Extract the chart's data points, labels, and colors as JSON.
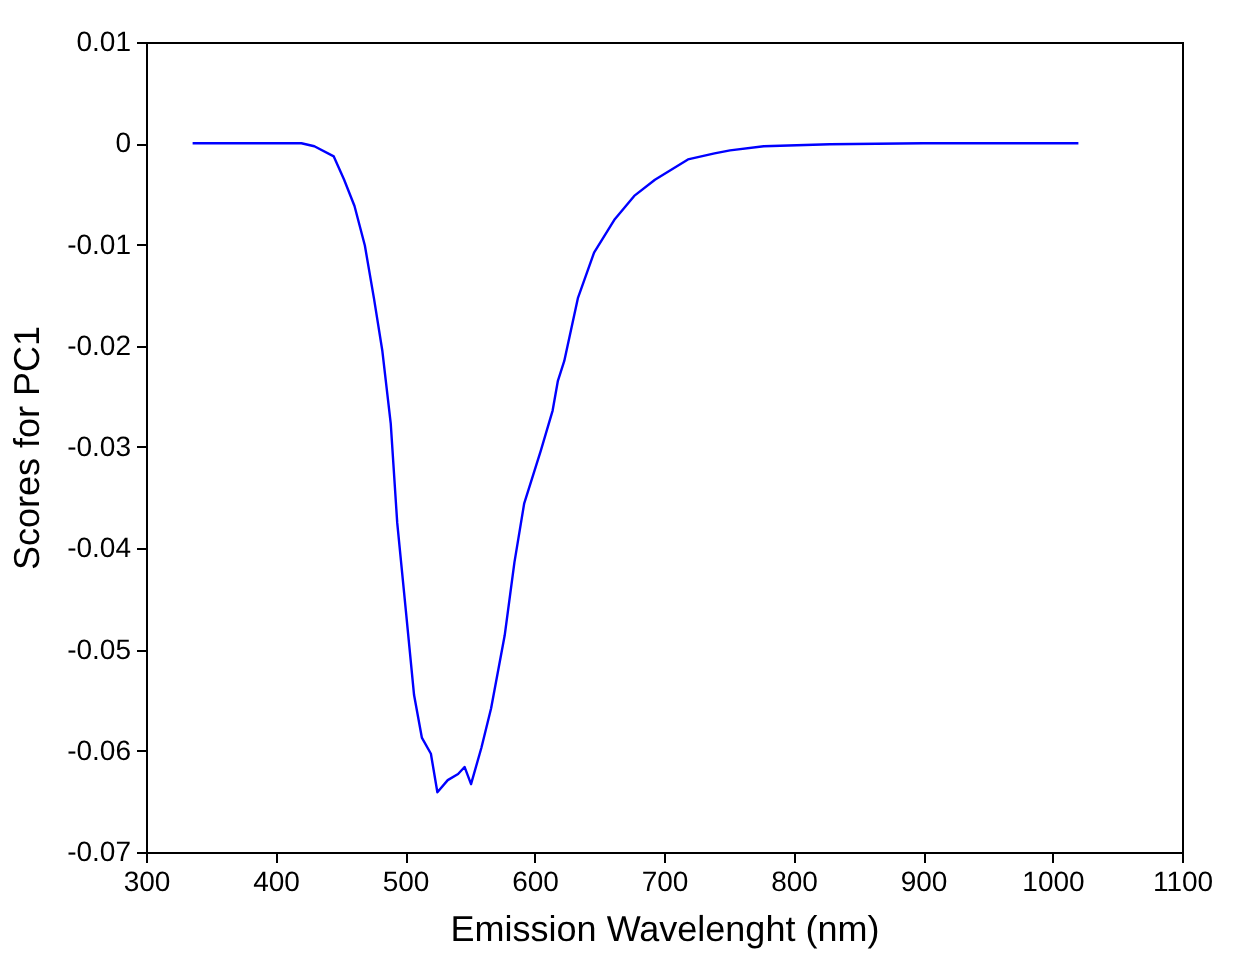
{
  "chart_data": {
    "type": "line",
    "xlabel": "Emission Wavelenght (nm)",
    "ylabel": "Scores for PC1",
    "x": [
      336,
      420,
      430,
      445,
      453,
      461,
      469,
      476,
      482.5,
      489,
      494,
      501,
      507,
      513,
      520,
      525,
      533,
      541,
      546,
      551,
      559,
      566.5,
      577,
      584.5,
      592,
      605,
      614,
      618,
      623,
      633.5,
      646,
      662,
      677,
      693,
      718.5,
      739,
      751,
      777,
      828,
      900,
      1020
    ],
    "series": [
      {
        "color": "#0000ff",
        "values": [
          0,
          0,
          -0.0003,
          -0.0013,
          -0.0036,
          -0.0062,
          -0.0101,
          -0.0153,
          -0.0205,
          -0.0277,
          -0.0375,
          -0.0466,
          -0.0545,
          -0.0587,
          -0.0603,
          -0.0641,
          -0.0629,
          -0.0623,
          -0.0616,
          -0.0633,
          -0.0597,
          -0.0558,
          -0.0486,
          -0.0414,
          -0.0356,
          -0.0303,
          -0.0264,
          -0.0235,
          -0.0215,
          -0.0153,
          -0.0108,
          -0.0075,
          -0.0052,
          -0.0036,
          -0.0016,
          -0.001,
          -0.0007,
          -0.0003,
          -0.0001,
          0,
          0
        ]
      }
    ],
    "xlim": [
      300,
      1100
    ],
    "xticks": [
      300,
      400,
      500,
      600,
      700,
      800,
      900,
      1000,
      1100
    ],
    "ylim": [
      -0.07,
      0.01
    ],
    "yticks": [
      -0.07,
      -0.06,
      -0.05,
      -0.04,
      -0.03,
      -0.02,
      -0.01,
      0,
      0.01
    ],
    "grid": false,
    "marker": "none",
    "line_style": "solid"
  }
}
